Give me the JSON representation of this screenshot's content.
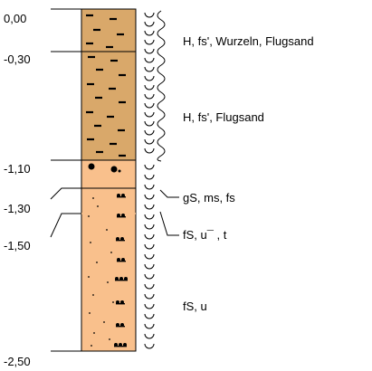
{
  "profile": {
    "depth_labels": [
      "0,00",
      "-0,30",
      "-1,10",
      "-1,30",
      "-1,50",
      "-2,50"
    ],
    "layers": [
      {
        "top": 0.0,
        "bottom": 0.3,
        "fill": "#d9a86a",
        "pattern": "humus",
        "description": "H, fs', Wurzeln, Flugsand"
      },
      {
        "top": 0.3,
        "bottom": 1.1,
        "fill": "#d9a86a",
        "pattern": "humus",
        "description": "H, fs', Flugsand"
      },
      {
        "top": 1.1,
        "bottom": 1.3,
        "fill": "#f9c08c",
        "pattern": "gravel",
        "description": "gS, ms, fs"
      },
      {
        "top": 1.3,
        "bottom": 1.5,
        "fill": "#f9c08c",
        "pattern": "fine-sand",
        "description": "fS, u¯ , t"
      },
      {
        "top": 1.5,
        "bottom": 2.5,
        "fill": "#f9c08c",
        "pattern": "fine-sand",
        "description": "fS, u"
      }
    ],
    "moisture_symbols": [
      "wet-wavy",
      "moist-arc"
    ],
    "colors": {
      "humus": "#d9a86a",
      "sand": "#f9c08c",
      "line": "#000000"
    }
  }
}
